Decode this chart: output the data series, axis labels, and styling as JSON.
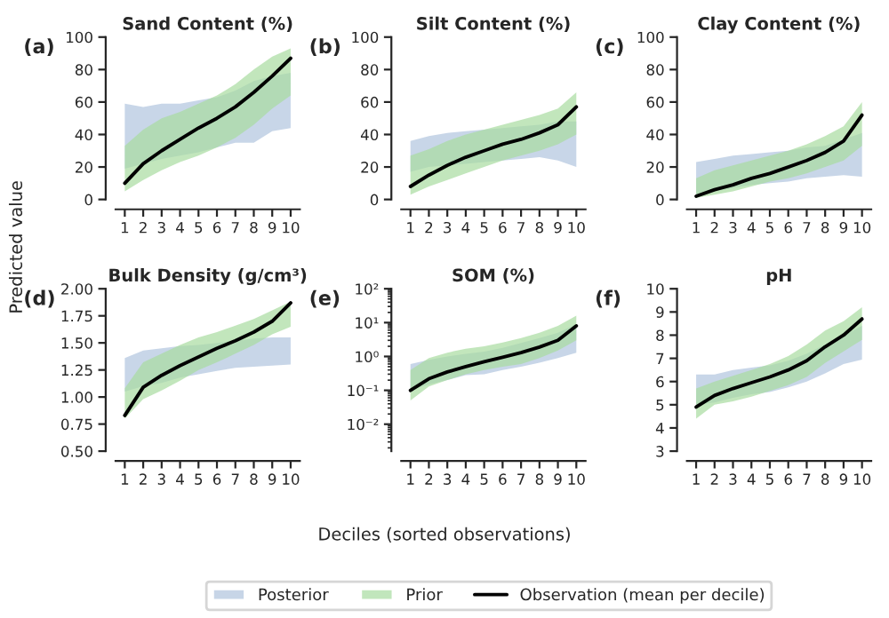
{
  "chart_data": [
    {
      "type": "line",
      "title": "Sand Content (%)",
      "annotations": [
        "(a)"
      ],
      "xlabel": "Deciles (sorted observations)",
      "ylabel": "Predicted value",
      "legend": "bottom",
      "x": [
        1,
        2,
        3,
        4,
        5,
        6,
        7,
        8,
        9,
        10
      ],
      "xlim": [
        0.5,
        10.5
      ],
      "xticks": [
        1,
        2,
        3,
        4,
        5,
        6,
        7,
        8,
        9,
        10
      ],
      "ylim": [
        0,
        100
      ],
      "yticks": [
        0,
        20,
        40,
        60,
        80,
        100
      ],
      "series": [
        {
          "name": "Posterior",
          "type": "area",
          "color": "#b0c4de",
          "values": [
            null,
            null,
            null,
            null,
            null,
            null,
            null,
            null,
            null,
            null
          ],
          "lower": [
            19,
            22,
            25,
            27,
            29,
            32,
            35,
            35,
            42,
            44
          ],
          "upper": [
            59,
            57,
            59,
            59,
            61,
            63,
            67,
            73,
            76,
            78
          ]
        },
        {
          "name": "Prior",
          "type": "area",
          "color": "#a8dca0",
          "values": [
            null,
            null,
            null,
            null,
            null,
            null,
            null,
            null,
            null,
            null
          ],
          "lower": [
            5,
            12,
            18,
            23,
            27,
            32,
            38,
            46,
            56,
            64
          ],
          "upper": [
            33,
            43,
            50,
            54,
            59,
            64,
            71,
            80,
            88,
            93
          ]
        },
        {
          "name": "Observation (mean per decile)",
          "type": "line",
          "color": "#000000",
          "values": [
            10,
            22,
            30,
            37,
            44,
            50,
            57,
            66,
            76,
            87
          ]
        }
      ]
    },
    {
      "type": "line",
      "title": "Silt Content (%)",
      "annotations": [
        "(b)"
      ],
      "x": [
        1,
        2,
        3,
        4,
        5,
        6,
        7,
        8,
        9,
        10
      ],
      "xlim": [
        0.5,
        10.5
      ],
      "xticks": [
        1,
        2,
        3,
        4,
        5,
        6,
        7,
        8,
        9,
        10
      ],
      "ylim": [
        0,
        100
      ],
      "yticks": [
        0,
        20,
        40,
        60,
        80,
        100
      ],
      "series": [
        {
          "type": "area",
          "color": "#b0c4de",
          "values": [
            null,
            null,
            null,
            null,
            null,
            null,
            null,
            null,
            null,
            null
          ],
          "lower": [
            17,
            20,
            21,
            22,
            23,
            24,
            25,
            26,
            24,
            20
          ],
          "upper": [
            36,
            39,
            41,
            42,
            43,
            44,
            45,
            46,
            48,
            48
          ]
        },
        {
          "type": "area",
          "color": "#a8dca0",
          "values": [
            null,
            null,
            null,
            null,
            null,
            null,
            null,
            null,
            null,
            null
          ],
          "lower": [
            3,
            8,
            12,
            16,
            20,
            24,
            27,
            30,
            34,
            40
          ],
          "upper": [
            27,
            31,
            36,
            40,
            43,
            46,
            49,
            52,
            56,
            66
          ]
        },
        {
          "type": "line",
          "color": "#000000",
          "values": [
            8,
            15,
            21,
            26,
            30,
            34,
            37,
            41,
            46,
            57
          ]
        }
      ]
    },
    {
      "type": "line",
      "title": "Clay Content (%)",
      "annotations": [
        "(c)"
      ],
      "x": [
        1,
        2,
        3,
        4,
        5,
        6,
        7,
        8,
        9,
        10
      ],
      "xlim": [
        0.5,
        10.5
      ],
      "xticks": [
        1,
        2,
        3,
        4,
        5,
        6,
        7,
        8,
        9,
        10
      ],
      "ylim": [
        0,
        100
      ],
      "yticks": [
        0,
        20,
        40,
        60,
        80,
        100
      ],
      "series": [
        {
          "type": "area",
          "color": "#b0c4de",
          "values": [
            null,
            null,
            null,
            null,
            null,
            null,
            null,
            null,
            null,
            null
          ],
          "lower": [
            3,
            5,
            7,
            9,
            10,
            11,
            13,
            14,
            15,
            14
          ],
          "upper": [
            23,
            25,
            27,
            28,
            29,
            30,
            32,
            33,
            37,
            41
          ]
        },
        {
          "type": "area",
          "color": "#a8dca0",
          "values": [
            null,
            null,
            null,
            null,
            null,
            null,
            null,
            null,
            null,
            null
          ],
          "lower": [
            1,
            3,
            5,
            8,
            11,
            13,
            16,
            20,
            24,
            33
          ],
          "upper": [
            13,
            18,
            21,
            24,
            27,
            30,
            34,
            39,
            45,
            60
          ]
        },
        {
          "type": "line",
          "color": "#000000",
          "values": [
            2,
            6,
            9,
            13,
            16,
            20,
            24,
            29,
            36,
            52
          ]
        }
      ]
    },
    {
      "type": "line",
      "title": "Bulk Density (g/cm³)",
      "annotations": [
        "(d)"
      ],
      "x": [
        1,
        2,
        3,
        4,
        5,
        6,
        7,
        8,
        9,
        10
      ],
      "xlim": [
        0.5,
        10.5
      ],
      "xticks": [
        1,
        2,
        3,
        4,
        5,
        6,
        7,
        8,
        9,
        10
      ],
      "ylim": [
        0.5,
        2.0
      ],
      "yticks": [
        {
          "value": 0.5,
          "label": "0.50"
        },
        {
          "value": 0.75,
          "label": "0.75"
        },
        {
          "value": 1.0,
          "label": "1.00"
        },
        {
          "value": 1.25,
          "label": "1.25"
        },
        {
          "value": 1.5,
          "label": "1.50"
        },
        {
          "value": 1.75,
          "label": "1.75"
        },
        {
          "value": 2.0,
          "label": "2.00"
        }
      ],
      "series": [
        {
          "type": "area",
          "color": "#b0c4de",
          "values": [
            null,
            null,
            null,
            null,
            null,
            null,
            null,
            null,
            null,
            null
          ],
          "lower": [
            1.05,
            1.1,
            1.13,
            1.18,
            1.21,
            1.24,
            1.27,
            1.28,
            1.29,
            1.3
          ],
          "upper": [
            1.36,
            1.43,
            1.45,
            1.47,
            1.48,
            1.5,
            1.52,
            1.54,
            1.55,
            1.55
          ]
        },
        {
          "type": "area",
          "color": "#a8dca0",
          "values": [
            null,
            null,
            null,
            null,
            null,
            null,
            null,
            null,
            null,
            null
          ],
          "lower": [
            0.8,
            0.98,
            1.06,
            1.15,
            1.25,
            1.32,
            1.4,
            1.48,
            1.58,
            1.65
          ],
          "upper": [
            1.08,
            1.32,
            1.4,
            1.48,
            1.55,
            1.6,
            1.66,
            1.72,
            1.8,
            1.88
          ]
        },
        {
          "type": "line",
          "color": "#000000",
          "values": [
            0.83,
            1.09,
            1.2,
            1.29,
            1.37,
            1.45,
            1.52,
            1.6,
            1.7,
            1.87
          ]
        }
      ]
    },
    {
      "type": "line",
      "title": "SOM (%)",
      "annotations": [
        "(e)"
      ],
      "log": "y",
      "x": [
        1,
        2,
        3,
        4,
        5,
        6,
        7,
        8,
        9,
        10
      ],
      "xlim": [
        0.5,
        10.5
      ],
      "xticks": [
        1,
        2,
        3,
        4,
        5,
        6,
        7,
        8,
        9,
        10
      ],
      "ylim": [
        0.0016,
        100
      ],
      "yticks": [
        {
          "value": 0.01,
          "label": "10⁻²"
        },
        {
          "value": 0.1,
          "label": "10⁻¹"
        },
        {
          "value": 1,
          "label": "10⁰"
        },
        {
          "value": 10,
          "label": "10¹"
        },
        {
          "value": 100,
          "label": "10²"
        }
      ],
      "series": [
        {
          "type": "area",
          "color": "#b0c4de",
          "values": [
            null,
            null,
            null,
            null,
            null,
            null,
            null,
            null,
            null,
            null
          ],
          "lower": [
            0.1,
            0.15,
            0.2,
            0.28,
            0.3,
            0.4,
            0.5,
            0.65,
            0.9,
            1.3
          ],
          "upper": [
            0.6,
            0.8,
            1.0,
            1.2,
            1.4,
            1.8,
            2.5,
            3.5,
            5,
            9
          ]
        },
        {
          "type": "area",
          "color": "#a8dca0",
          "values": [
            null,
            null,
            null,
            null,
            null,
            null,
            null,
            null,
            null,
            null
          ],
          "lower": [
            0.05,
            0.13,
            0.2,
            0.3,
            0.4,
            0.5,
            0.6,
            0.9,
            1.5,
            3
          ],
          "upper": [
            0.4,
            0.9,
            1.3,
            1.7,
            2,
            2.6,
            3.5,
            5,
            8,
            16
          ]
        },
        {
          "type": "line",
          "color": "#000000",
          "values": [
            0.1,
            0.22,
            0.35,
            0.5,
            0.7,
            0.95,
            1.3,
            1.9,
            3,
            8
          ]
        }
      ]
    },
    {
      "type": "line",
      "title": "pH",
      "annotations": [
        "(f)"
      ],
      "x": [
        1,
        2,
        3,
        4,
        5,
        6,
        7,
        8,
        9,
        10
      ],
      "xlim": [
        0.5,
        10.5
      ],
      "xticks": [
        1,
        2,
        3,
        4,
        5,
        6,
        7,
        8,
        9,
        10
      ],
      "ylim": [
        3,
        10
      ],
      "yticks": [
        3,
        4,
        5,
        6,
        7,
        8,
        9,
        10
      ],
      "series": [
        {
          "type": "area",
          "color": "#b0c4de",
          "values": [
            null,
            null,
            null,
            null,
            null,
            null,
            null,
            null,
            null,
            null
          ],
          "lower": [
            5.0,
            5.1,
            5.3,
            5.45,
            5.55,
            5.75,
            6.0,
            6.35,
            6.75,
            6.95
          ],
          "upper": [
            6.3,
            6.3,
            6.5,
            6.6,
            6.7,
            6.9,
            7.2,
            7.6,
            8.0,
            8.4
          ]
        },
        {
          "type": "area",
          "color": "#a8dca0",
          "values": [
            null,
            null,
            null,
            null,
            null,
            null,
            null,
            null,
            null,
            null
          ],
          "lower": [
            4.4,
            5.0,
            5.15,
            5.35,
            5.6,
            5.85,
            6.2,
            6.8,
            7.3,
            7.8
          ],
          "upper": [
            5.7,
            6.0,
            6.25,
            6.5,
            6.75,
            7.1,
            7.6,
            8.2,
            8.6,
            9.2
          ]
        },
        {
          "type": "line",
          "color": "#000000",
          "values": [
            4.9,
            5.4,
            5.7,
            5.95,
            6.2,
            6.5,
            6.9,
            7.5,
            8.0,
            8.7
          ]
        }
      ]
    }
  ]
}
